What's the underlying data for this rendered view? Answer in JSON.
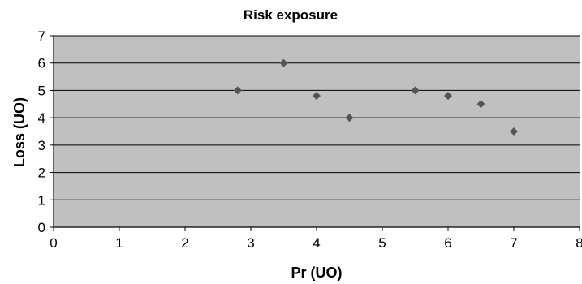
{
  "chart_data": {
    "type": "scatter",
    "title": "Risk exposure",
    "xlabel": "Pr (UO)",
    "ylabel": "Loss (UO)",
    "xlim": [
      0,
      8
    ],
    "ylim": [
      0,
      7
    ],
    "xticks": [
      0,
      1,
      2,
      3,
      4,
      5,
      6,
      7,
      8
    ],
    "yticks": [
      0,
      1,
      2,
      3,
      4,
      5,
      6,
      7
    ],
    "grid": "horizontal",
    "legend": "none",
    "plot_background": "#c0c0c0",
    "marker_color": "#555555",
    "marker": "diamond",
    "points": [
      {
        "x": 2.8,
        "y": 5.0
      },
      {
        "x": 3.5,
        "y": 6.0
      },
      {
        "x": 4.0,
        "y": 4.8
      },
      {
        "x": 4.5,
        "y": 4.0
      },
      {
        "x": 5.5,
        "y": 5.0
      },
      {
        "x": 6.0,
        "y": 4.8
      },
      {
        "x": 6.5,
        "y": 4.5
      },
      {
        "x": 7.0,
        "y": 3.5
      }
    ]
  }
}
